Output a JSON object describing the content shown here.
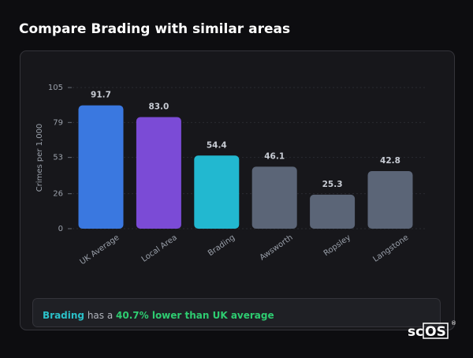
{
  "header": {
    "title": "Compare Brading with similar areas"
  },
  "chart_data": {
    "type": "bar",
    "y_label": "Crimes per 1,000",
    "categories": [
      "UK Average",
      "Local Area",
      "Brading",
      "Awsworth",
      "Ropsley",
      "Langstone"
    ],
    "values": [
      91.7,
      83.0,
      54.4,
      46.1,
      25.3,
      42.8
    ],
    "value_labels": [
      "91.7",
      "83.0",
      "54.4",
      "46.1",
      "25.3",
      "42.8"
    ],
    "colors": [
      "#3a78e0",
      "#7b4bd6",
      "#22b8d0",
      "#5b6577",
      "#5b6577",
      "#5b6577"
    ],
    "ylim": [
      0,
      105
    ],
    "yticks": [
      0,
      26,
      53,
      79,
      105
    ],
    "grid": true
  },
  "note": {
    "area": "Brading",
    "middle": " has a ",
    "highlight": "40.7% lower than UK average"
  },
  "logo": {
    "text": "sc",
    "box": "OS",
    "mark": "®"
  }
}
